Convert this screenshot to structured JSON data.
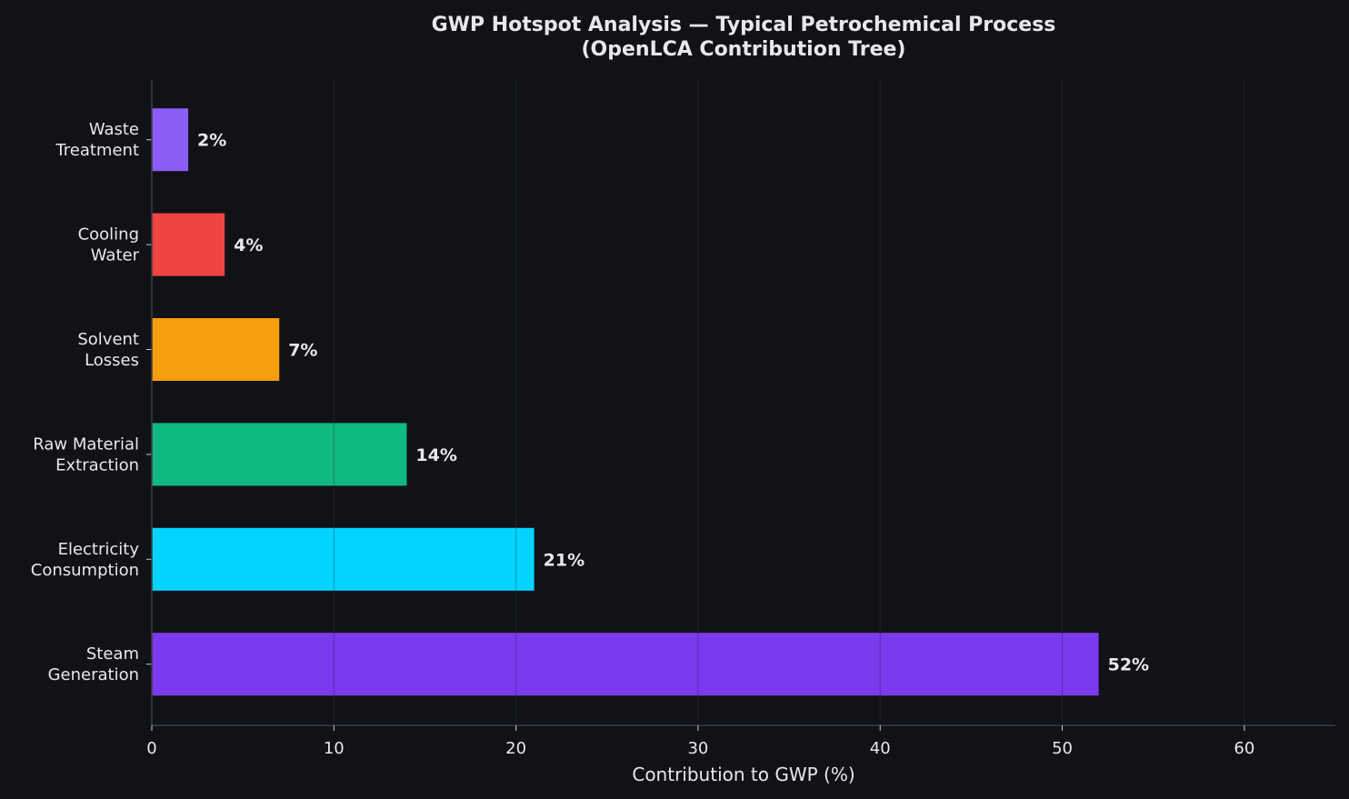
{
  "chart_data": {
    "type": "bar",
    "orientation": "horizontal",
    "title": "GWP Hotspot Analysis — Typical Petrochemical Process",
    "subtitle": "(OpenLCA Contribution Tree)",
    "xlabel": "Contribution to GWP (%)",
    "ylabel": "",
    "categories": [
      [
        "Waste",
        "Treatment"
      ],
      [
        "Cooling",
        "Water"
      ],
      [
        "Solvent",
        "Losses"
      ],
      [
        "Raw Material",
        "Extraction"
      ],
      [
        "Electricity",
        "Consumption"
      ],
      [
        "Steam",
        "Generation"
      ]
    ],
    "values": [
      2,
      4,
      7,
      14,
      21,
      52
    ],
    "value_labels": [
      "2%",
      "4%",
      "7%",
      "14%",
      "21%",
      "52%"
    ],
    "colors": [
      "#8b5cf6",
      "#ef4444",
      "#f59e0b",
      "#10b981",
      "#00d4ff",
      "#7c3aed"
    ],
    "xlim": [
      0,
      65
    ],
    "xticks": [
      0,
      10,
      20,
      30,
      40,
      50,
      60
    ],
    "xtick_labels": [
      "0",
      "10",
      "20",
      "30",
      "40",
      "50",
      "60"
    ],
    "grid": "vertical",
    "legend": "none"
  },
  "theme": {
    "background": "#111217",
    "text": "#e6e8ee",
    "grid": "#2a2d36",
    "axis": "#3a3d46"
  }
}
